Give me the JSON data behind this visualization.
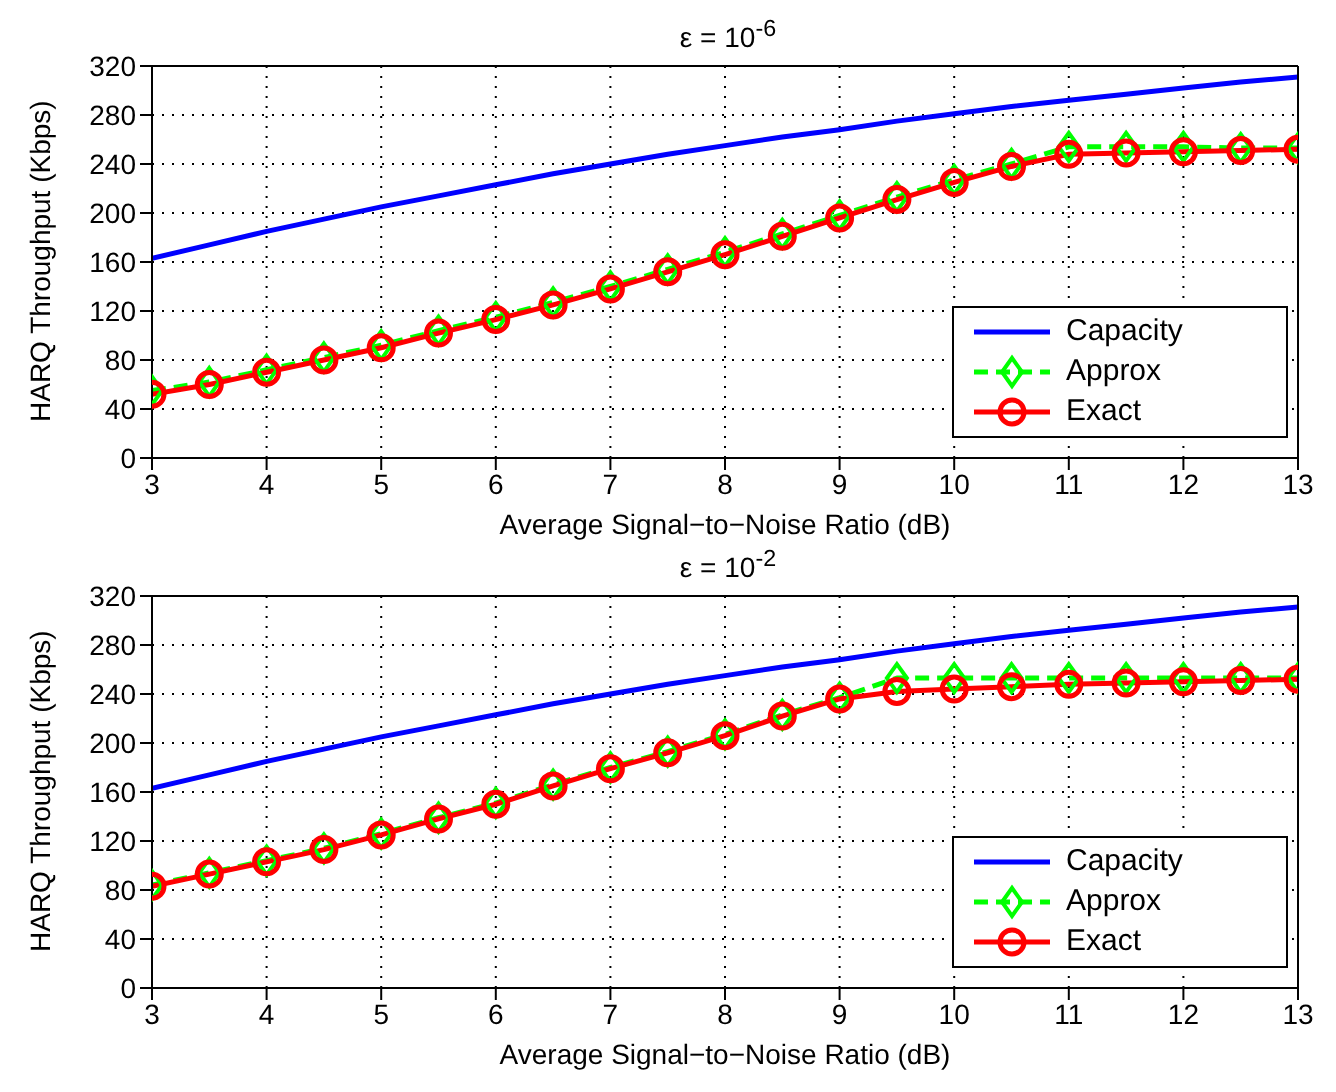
{
  "chart_data": [
    {
      "type": "line",
      "title": "ε = 10$^{-6}$",
      "xlabel": "Average Signal−to−Noise Ratio (dB)",
      "ylabel": "HARQ Throughput (Kbps)",
      "x": [
        3,
        3.5,
        4,
        4.5,
        5,
        5.5,
        6,
        6.5,
        7,
        7.5,
        8,
        8.5,
        9,
        9.5,
        10,
        10.5,
        11,
        11.5,
        12,
        12.5,
        13
      ],
      "xlim": [
        3,
        13
      ],
      "xticks": [
        3,
        4,
        5,
        6,
        7,
        8,
        9,
        10,
        11,
        12,
        13
      ],
      "ylim": [
        0,
        320
      ],
      "yticks": [
        0,
        40,
        80,
        120,
        160,
        200,
        240,
        280,
        320
      ],
      "grid": true,
      "legend": "bottom right",
      "series": [
        {
          "name": "Capacity",
          "color": "#0000ff",
          "marker": "none",
          "line_style": "solid",
          "values": [
            163,
            174,
            185,
            195,
            205,
            214,
            223,
            232,
            240,
            248,
            255,
            262,
            268,
            275,
            281,
            287,
            292,
            297,
            302,
            307,
            311
          ]
        },
        {
          "name": "Approx",
          "color": "#00ff00",
          "marker": "diamond",
          "line_style": "dashed",
          "values": [
            55,
            62,
            72,
            82,
            92,
            104,
            115,
            127,
            140,
            154,
            168,
            183,
            198,
            213,
            227,
            240,
            254,
            254,
            254,
            253,
            253
          ]
        },
        {
          "name": "Exact",
          "color": "#ff0000",
          "marker": "circle",
          "line_style": "solid",
          "values": [
            52,
            60,
            70,
            80,
            90,
            102,
            113,
            125,
            138,
            152,
            166,
            181,
            196,
            211,
            225,
            238,
            248,
            249,
            250,
            251,
            252
          ]
        }
      ]
    },
    {
      "type": "line",
      "title": "ε = 10$^{-2}$",
      "xlabel": "Average Signal−to−Noise Ratio (dB)",
      "ylabel": "HARQ Throughput (Kbps)",
      "x": [
        3,
        3.5,
        4,
        4.5,
        5,
        5.5,
        6,
        6.5,
        7,
        7.5,
        8,
        8.5,
        9,
        9.5,
        10,
        10.5,
        11,
        11.5,
        12,
        12.5,
        13
      ],
      "xlim": [
        3,
        13
      ],
      "xticks": [
        3,
        4,
        5,
        6,
        7,
        8,
        9,
        10,
        11,
        12,
        13
      ],
      "ylim": [
        0,
        320
      ],
      "yticks": [
        0,
        40,
        80,
        120,
        160,
        200,
        240,
        280,
        320
      ],
      "grid": true,
      "legend": "bottom right",
      "series": [
        {
          "name": "Capacity",
          "color": "#0000ff",
          "marker": "none",
          "line_style": "solid",
          "values": [
            163,
            174,
            185,
            195,
            205,
            214,
            223,
            232,
            240,
            248,
            255,
            262,
            268,
            275,
            281,
            287,
            292,
            297,
            302,
            307,
            311
          ]
        },
        {
          "name": "Approx",
          "color": "#00ff00",
          "marker": "diamond",
          "line_style": "dashed",
          "values": [
            84,
            94,
            104,
            114,
            126,
            139,
            151,
            166,
            180,
            193,
            207,
            223,
            237,
            253,
            253,
            253,
            253,
            253,
            253,
            253,
            253
          ]
        },
        {
          "name": "Exact",
          "color": "#ff0000",
          "marker": "circle",
          "line_style": "solid",
          "values": [
            83,
            93,
            103,
            113,
            125,
            138,
            150,
            165,
            179,
            192,
            206,
            222,
            236,
            242,
            244,
            246,
            248,
            249,
            250,
            251,
            252
          ]
        }
      ]
    }
  ]
}
